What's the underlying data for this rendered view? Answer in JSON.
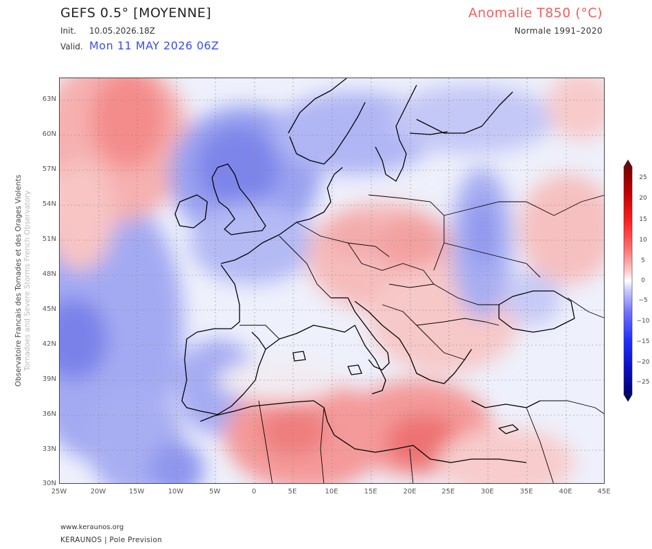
{
  "header": {
    "title": "GEFS 0.5° [MOYENNE]",
    "init_label": "Init.",
    "init_value": "10.05.2026.18Z",
    "valid_label": "Valid.",
    "valid_value": "Mon 11 MAY 2026 06Z",
    "param_title": "Anomalie T850 (°C)",
    "normale": "Normale 1991–2020"
  },
  "side_text": {
    "line1": "Observatoire Francais des Tornades et des Orages Violents",
    "line2": "Tornadoes and Severe Storms French Observatory"
  },
  "axes": {
    "lat_labels": [
      "63N",
      "60N",
      "57N",
      "54N",
      "51N",
      "48N",
      "45N",
      "42N",
      "39N",
      "36N",
      "33N",
      "30N"
    ],
    "lon_labels": [
      "25W",
      "20W",
      "15W",
      "10W",
      "5W",
      "0",
      "5E",
      "10E",
      "15E",
      "20E",
      "25E",
      "30E",
      "35E",
      "40E",
      "45E"
    ]
  },
  "colorbar": {
    "labels": [
      "25",
      "20",
      "15",
      "10",
      "5",
      "0",
      "−5",
      "−10",
      "−15",
      "−20",
      "−25"
    ],
    "warm_color": "#d40000",
    "cold_color": "#0a18d0"
  },
  "footer": {
    "url": "www.keraunos.org",
    "brand": "KERAUNOS | Pole Prevision"
  }
}
